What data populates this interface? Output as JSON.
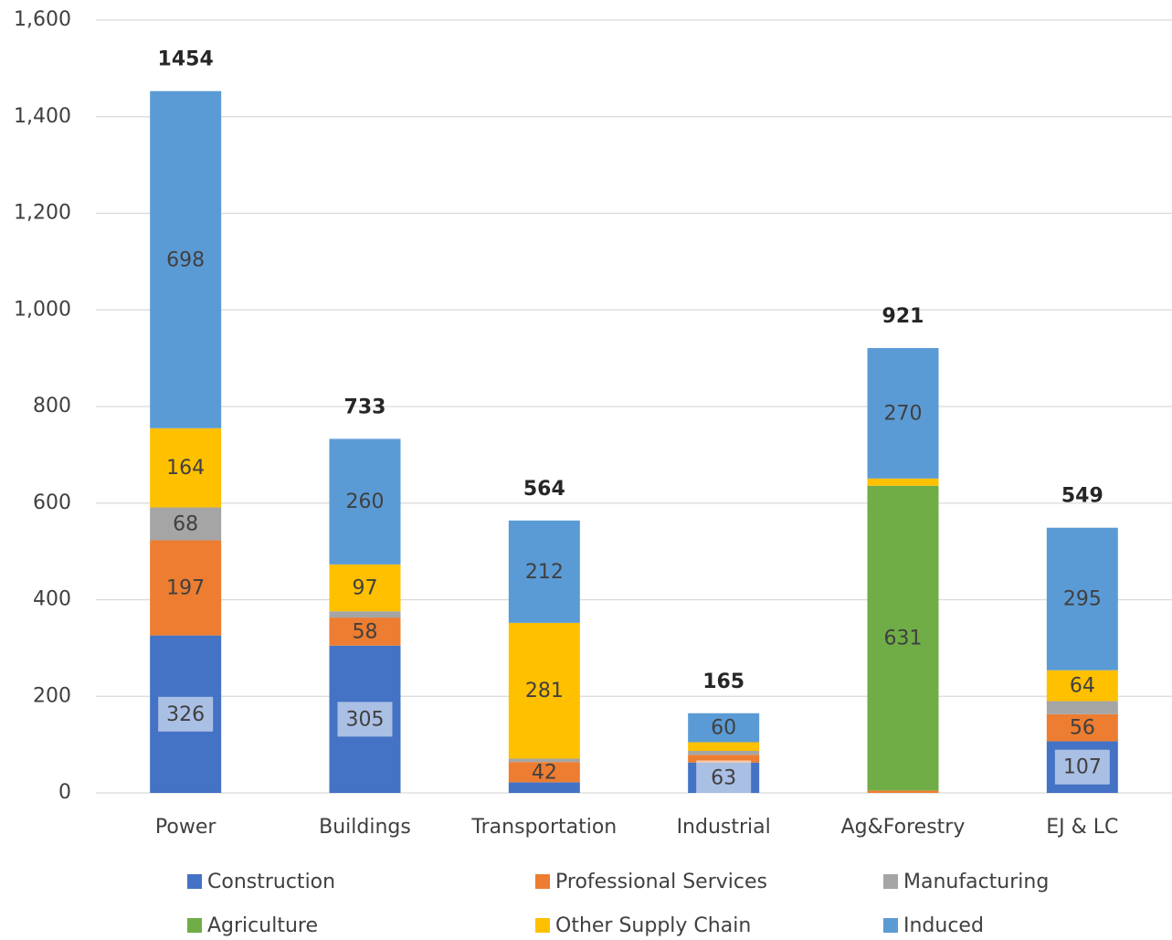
{
  "chart_data": {
    "type": "stacked_bar",
    "categories": [
      "Power",
      "Buildings",
      "Transportation",
      "Industrial",
      "Ag&Forestry",
      "EJ & LC"
    ],
    "series": [
      {
        "name": "Construction",
        "color": "#4472c4",
        "values": [
          326,
          305,
          22,
          63,
          0,
          107
        ]
      },
      {
        "name": "Professional Services",
        "color": "#ed7d31",
        "values": [
          197,
          58,
          42,
          16,
          5,
          56
        ]
      },
      {
        "name": "Manufacturing",
        "color": "#a5a5a5",
        "values": [
          68,
          13,
          7,
          8,
          0,
          27
        ]
      },
      {
        "name": "Agriculture",
        "color": "#70ad47",
        "values": [
          0,
          0,
          0,
          0,
          631,
          0
        ]
      },
      {
        "name": "Other Supply Chain",
        "color": "#ffc000",
        "values": [
          164,
          97,
          281,
          18,
          15,
          64
        ]
      },
      {
        "name": "Induced",
        "color": "#5b9bd5",
        "values": [
          698,
          260,
          212,
          60,
          270,
          295
        ]
      }
    ],
    "totals": [
      1454,
      733,
      564,
      165,
      921,
      549
    ],
    "ylim": [
      0,
      1600
    ],
    "yticks": [
      0,
      200,
      400,
      600,
      800,
      {
        "value": 1000,
        "label": "1,000"
      },
      {
        "value": 1200,
        "label": "1,200"
      },
      {
        "value": 1400,
        "label": "1,400"
      },
      {
        "value": 1600,
        "label": "1,600"
      }
    ],
    "grid": true
  }
}
